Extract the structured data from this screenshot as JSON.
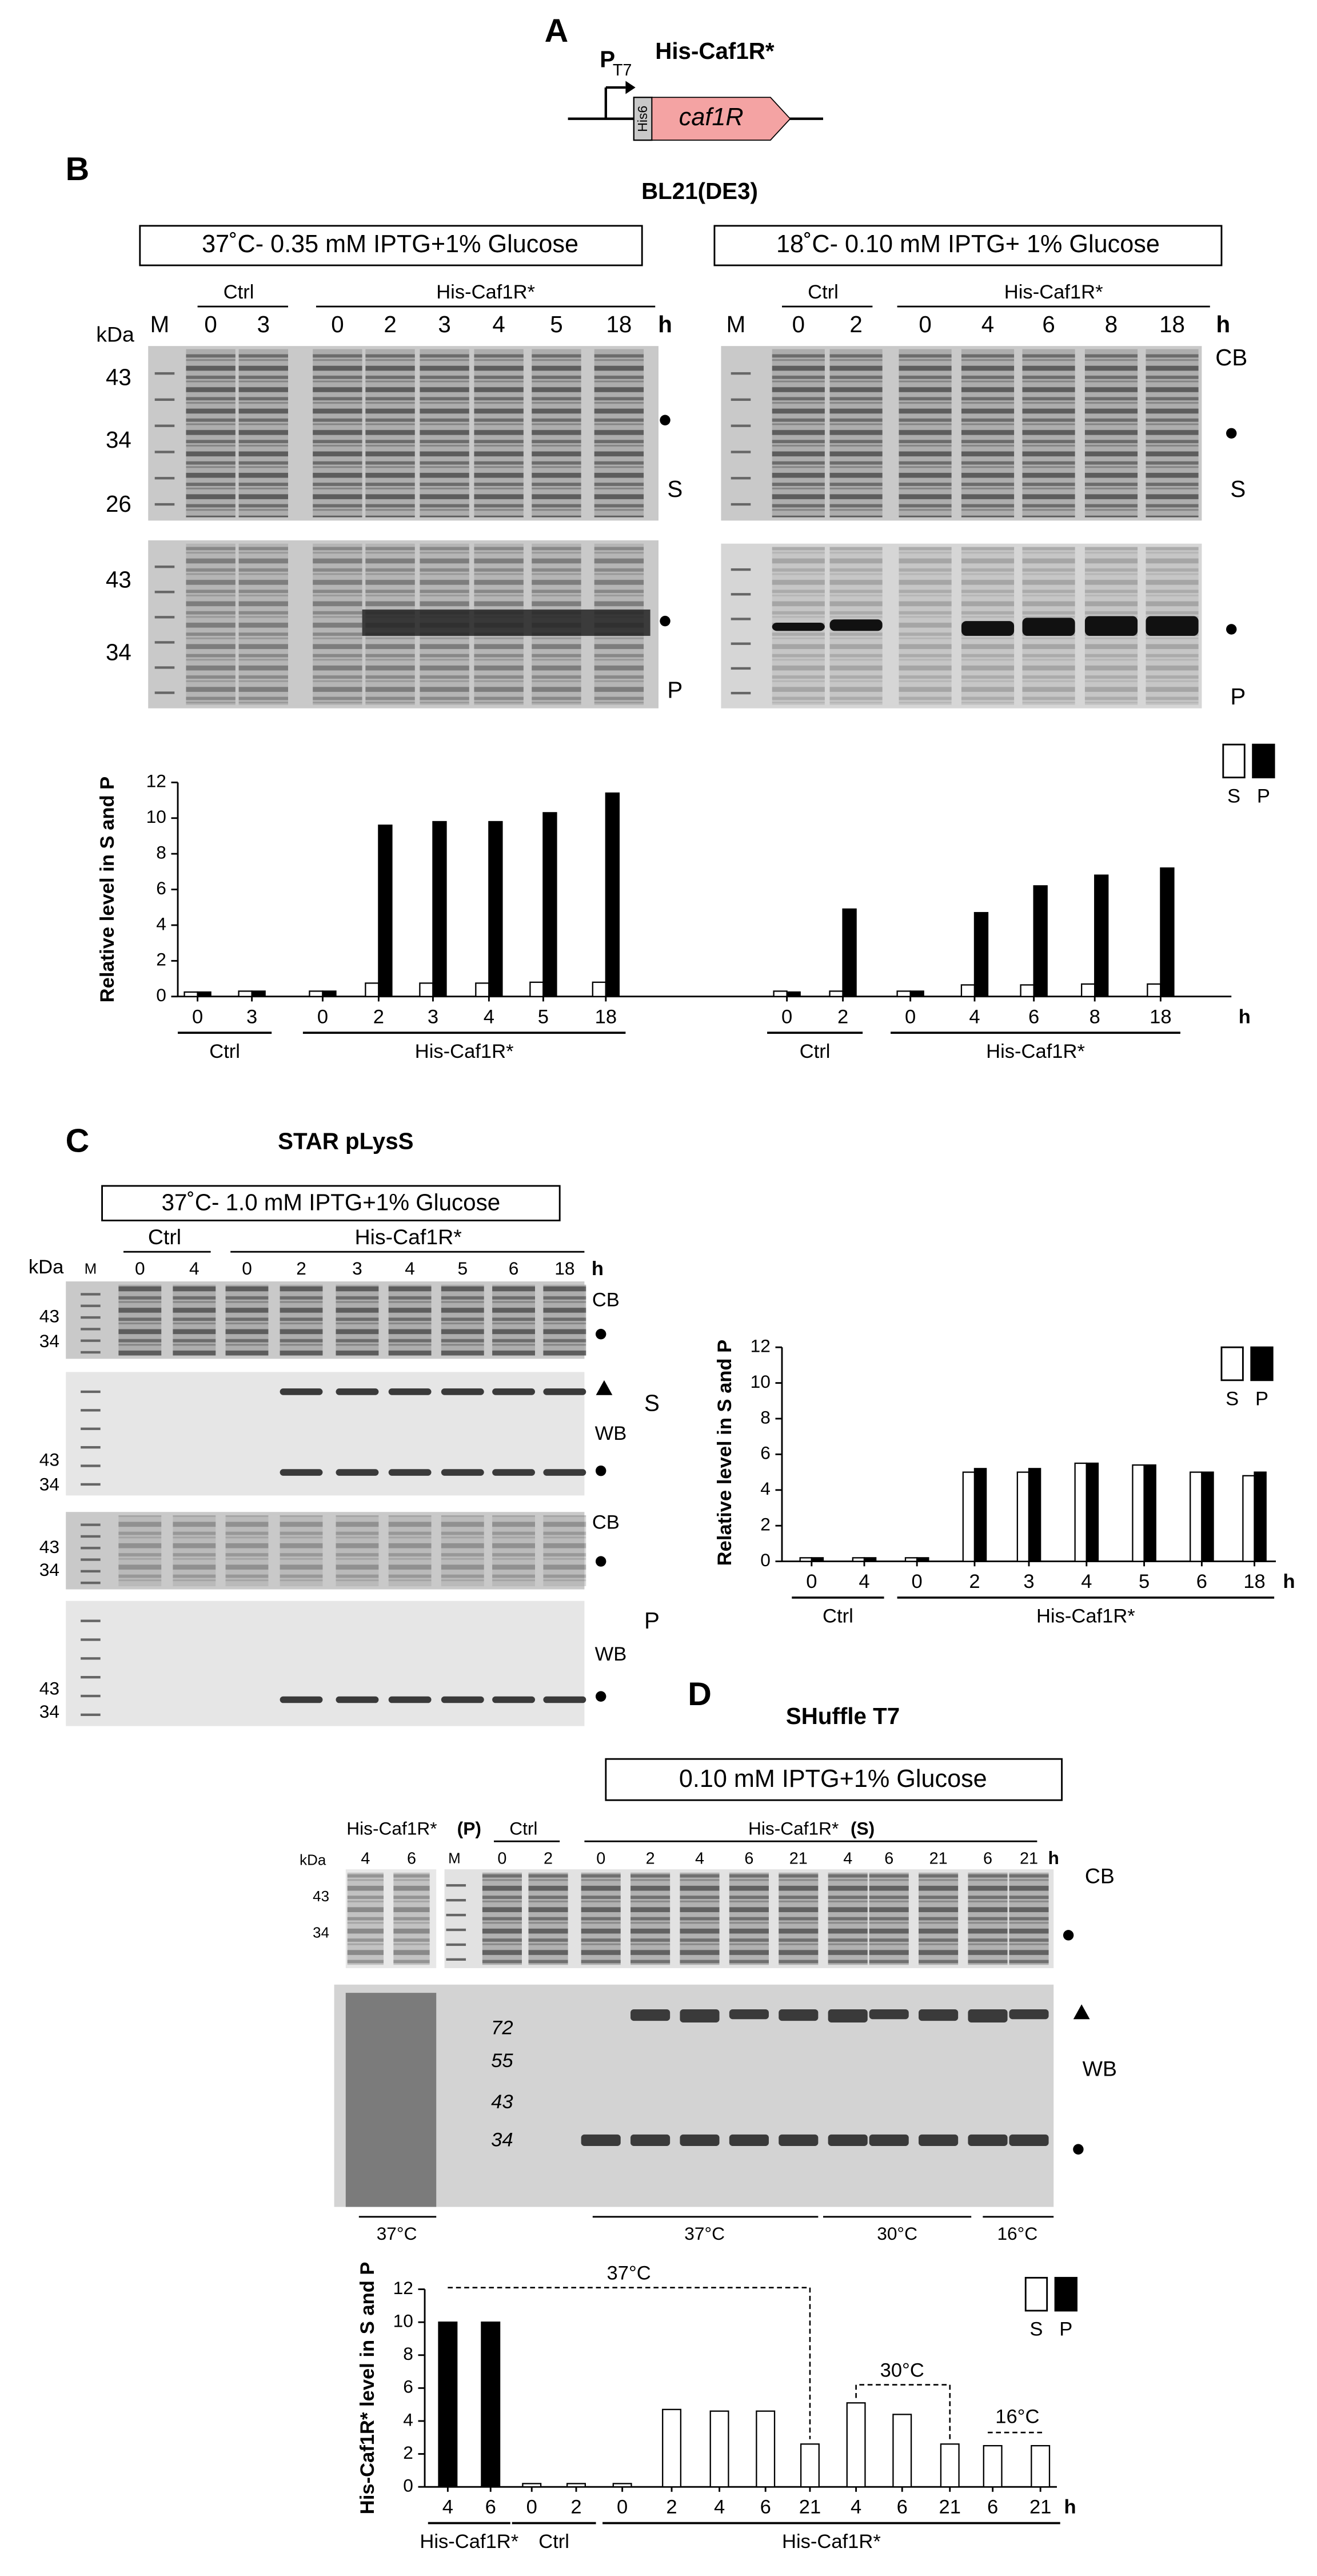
{
  "panel_a": {
    "letter": "A",
    "promoter": "P",
    "promoter_sub": "T7",
    "construct": "His-Caf1R*",
    "tag": "His6",
    "gene": "caf1R"
  },
  "panel_b": {
    "letter": "B",
    "strain": "BL21(DE3)",
    "gels": [
      {
        "condition": "37˚C- 0.35 mM IPTG+1% Glucose",
        "kda": "kDa",
        "marker_lane": "M",
        "ctrl_label": "Ctrl",
        "treat_label": "His-Caf1R*",
        "lanes": [
          "0",
          "3",
          "0",
          "2",
          "3",
          "4",
          "5",
          "18"
        ],
        "unit": "h",
        "markers_top": [
          "43",
          "34",
          "26"
        ],
        "markers_bottom": [
          "43",
          "34"
        ],
        "label_top": "S",
        "label_bottom": "P"
      },
      {
        "condition": "18˚C- 0.10 mM IPTG+ 1% Glucose",
        "marker_lane": "M",
        "ctrl_label": "Ctrl",
        "treat_label": "His-Caf1R*",
        "lanes": [
          "0",
          "2",
          "0",
          "4",
          "6",
          "8",
          "18"
        ],
        "unit": "h",
        "label_cb": "CB",
        "label_top": "S",
        "label_bottom": "P"
      }
    ]
  },
  "panel_c": {
    "letter": "C",
    "strain": "STAR pLysS",
    "condition": "37˚C- 1.0 mM IPTG+1% Glucose",
    "kda": "kDa",
    "marker_lane": "M",
    "ctrl_label": "Ctrl",
    "treat_label": "His-Caf1R*",
    "lanes": [
      "0",
      "4",
      "0",
      "2",
      "3",
      "4",
      "5",
      "6",
      "18"
    ],
    "unit": "h",
    "blots": [
      {
        "markers": [
          "43",
          "34"
        ],
        "labels": [
          "CB"
        ]
      },
      {
        "markers": [
          "43",
          "34"
        ],
        "labels": [
          "S",
          "WB"
        ]
      },
      {
        "markers": [
          "43",
          "34"
        ],
        "labels": [
          "CB"
        ]
      },
      {
        "markers": [
          "43",
          "34"
        ],
        "labels": [
          "P",
          "WB"
        ]
      }
    ]
  },
  "panel_d": {
    "letter": "D",
    "strain": "SHuffle T7",
    "condition": "0.10 mM IPTG+1% Glucose",
    "pellet_label": "His-Caf1R*",
    "pellet_tag": "(P)",
    "kda": "kDa",
    "pellet_lanes": [
      "4",
      "6"
    ],
    "marker_lane": "M",
    "ctrl_label": "Ctrl",
    "ctrl_lanes": [
      "0",
      "2"
    ],
    "treat_label": "His-Caf1R*",
    "treat_tag": "(S)",
    "treat_lanes": [
      "0",
      "2",
      "4",
      "6",
      "21",
      "4",
      "6",
      "21",
      "6",
      "21"
    ],
    "unit": "h",
    "markers": [
      "43",
      "34"
    ],
    "ladder": [
      "72",
      "55",
      "43",
      "34"
    ],
    "label_cb": "CB",
    "label_wb": "WB",
    "temperatures": [
      "37°C",
      "37°C",
      "30°C",
      "16°C"
    ]
  },
  "chart_data": [
    {
      "type": "bar",
      "y_label": "Relative level in S and P",
      "x_unit": "h",
      "groups": [
        {
          "label": "Ctrl",
          "categories": [
            "0",
            "3"
          ]
        },
        {
          "label": "His-Caf1R*",
          "categories": [
            "0",
            "2",
            "3",
            "4",
            "5",
            "18"
          ]
        },
        {
          "label": "Ctrl",
          "categories": [
            "0",
            "2"
          ]
        },
        {
          "label": "His-Caf1R*",
          "categories": [
            "0",
            "4",
            "6",
            "8",
            "18"
          ]
        }
      ],
      "series": [
        {
          "name": "S",
          "color": "#ffffff",
          "values": [
            0.25,
            0.3,
            0.3,
            0.75,
            0.75,
            0.75,
            0.8,
            0.8,
            0.3,
            0.3,
            0.3,
            0.65,
            0.65,
            0.7,
            0.7
          ]
        },
        {
          "name": "P",
          "color": "#000000",
          "values": [
            0.25,
            0.3,
            0.3,
            9.6,
            9.8,
            9.8,
            10.3,
            11.4,
            0.25,
            4.9,
            0.3,
            4.7,
            6.2,
            6.8,
            7.2
          ]
        }
      ],
      "ylim": [
        0,
        12
      ],
      "yticks": [
        0,
        2,
        4,
        6,
        8,
        10,
        12
      ]
    },
    {
      "type": "bar",
      "y_label": "Relative level in S and P",
      "x_unit": "h",
      "groups": [
        {
          "label": "Ctrl",
          "categories": [
            "0",
            "4"
          ]
        },
        {
          "label": "His-Caf1R*",
          "categories": [
            "0",
            "2",
            "3",
            "4",
            "5",
            "6",
            "18"
          ]
        }
      ],
      "series": [
        {
          "name": "S",
          "color": "#ffffff",
          "values": [
            0.2,
            0.2,
            0.2,
            5.0,
            5.0,
            5.5,
            5.4,
            5.0,
            4.8
          ]
        },
        {
          "name": "P",
          "color": "#000000",
          "values": [
            0.2,
            0.2,
            0.2,
            5.2,
            5.2,
            5.5,
            5.4,
            5.0,
            5.0
          ]
        }
      ],
      "ylim": [
        0,
        12
      ],
      "yticks": [
        0,
        2,
        4,
        6,
        8,
        10,
        12
      ]
    },
    {
      "type": "bar",
      "y_label": "His-Caf1R* level in S and P",
      "x_unit": "h",
      "groups": [
        {
          "label": "His-Caf1R*",
          "categories": [
            "4",
            "6"
          ]
        },
        {
          "label": "Ctrl",
          "categories": [
            "0",
            "2"
          ]
        },
        {
          "label": "His-Caf1R*",
          "categories": [
            "0",
            "2",
            "4",
            "6",
            "21",
            "4",
            "6",
            "21",
            "6",
            "21"
          ]
        }
      ],
      "series": [
        {
          "name": "S",
          "color": "#ffffff",
          "values": [
            null,
            null,
            0.2,
            0.2,
            0.2,
            4.7,
            4.6,
            4.6,
            2.6,
            5.1,
            4.4,
            2.6,
            2.5,
            2.5
          ]
        },
        {
          "name": "P",
          "color": "#000000",
          "values": [
            10,
            10,
            null,
            null,
            null,
            null,
            null,
            null,
            null,
            null,
            null,
            null,
            null,
            null
          ]
        }
      ],
      "ylim": [
        0,
        12
      ],
      "yticks": [
        0,
        2,
        4,
        6,
        8,
        10,
        12
      ],
      "annotations": [
        "37°C",
        "30°C",
        "16°C"
      ]
    }
  ]
}
